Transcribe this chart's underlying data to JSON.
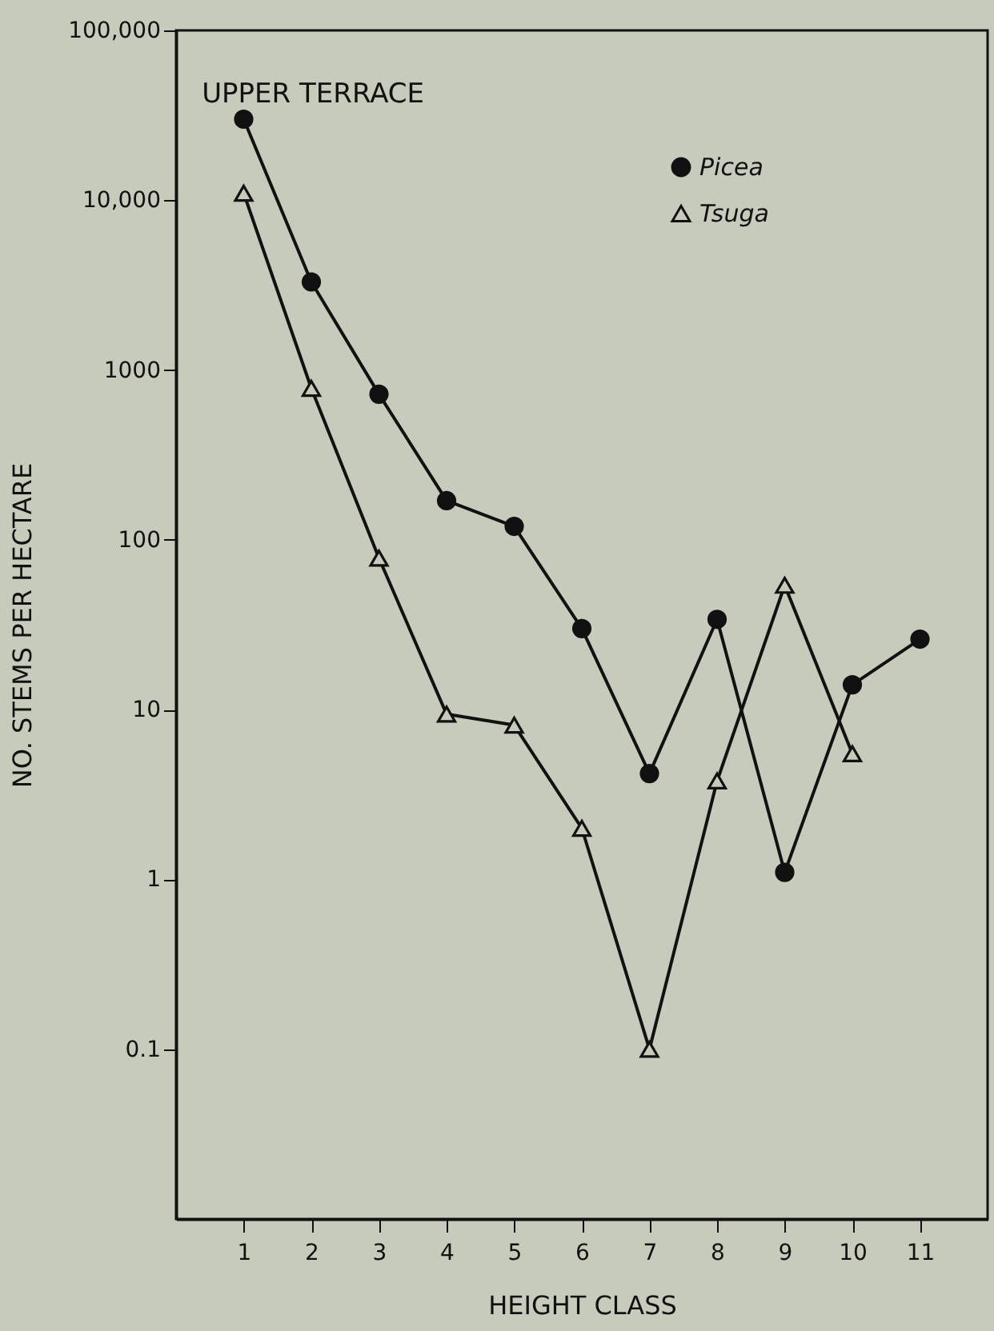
{
  "chart_data": {
    "type": "line",
    "title": "UPPER TERRACE",
    "xlabel": "HEIGHT CLASS",
    "ylabel": "NO. STEMS PER HECTARE",
    "x": [
      1,
      2,
      3,
      4,
      5,
      6,
      7,
      8,
      9,
      10,
      11
    ],
    "series": [
      {
        "name": "Picea",
        "color": "#111111",
        "marker": "circle",
        "values": [
          30000,
          3300,
          720,
          170,
          120,
          30,
          4.2,
          34,
          1.1,
          14,
          26
        ]
      },
      {
        "name": "Tsuga",
        "color": "#111111",
        "marker": "triangle",
        "values": [
          11000,
          780,
          78,
          9.4,
          8.1,
          2.0,
          0.1,
          3.8,
          54,
          5.5,
          null
        ]
      }
    ],
    "log": "y",
    "xlim": [
      0,
      12
    ],
    "xticks": [
      1,
      2,
      3,
      4,
      5,
      6,
      7,
      8,
      9,
      10,
      11
    ],
    "ylim": [
      0.01,
      100000
    ],
    "yticks": [
      0.1,
      1,
      10,
      100,
      {
        "value": 1000,
        "label": "1000"
      },
      {
        "value": 10000,
        "label": "10,000"
      },
      {
        "value": 100000,
        "label": "100,000"
      }
    ],
    "grid": false,
    "legend": "top right",
    "line_style": "solid"
  }
}
